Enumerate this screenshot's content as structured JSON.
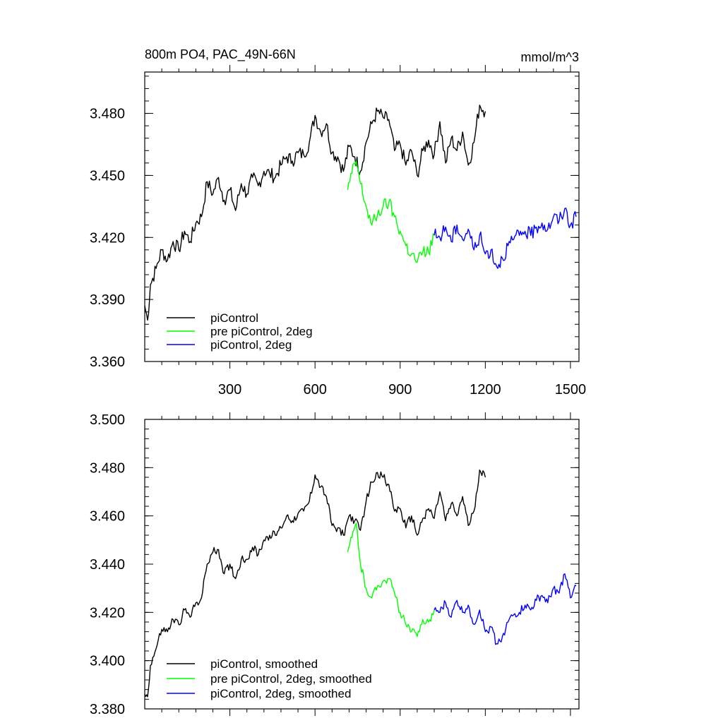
{
  "chart_data": [
    {
      "type": "line",
      "title": "800m PO4, PAC_49N-66N",
      "units": "mmol/m^3",
      "xlim": [
        0,
        1530
      ],
      "ylim": [
        3.36,
        3.5
      ],
      "xticks": [
        300,
        600,
        900,
        1200,
        1500
      ],
      "xtick_labels": [
        "300",
        "600",
        "900",
        "1200",
        "1500"
      ],
      "yticks": [
        3.36,
        3.39,
        3.42,
        3.45,
        3.48
      ],
      "ytick_labels": [
        "3.360",
        "3.390",
        "3.420",
        "3.450",
        "3.480"
      ],
      "legend": "bottom-left",
      "series": [
        {
          "name": "piControl",
          "color": "#000000",
          "x": [
            0,
            10,
            20,
            40,
            60,
            80,
            100,
            120,
            140,
            160,
            180,
            200,
            220,
            240,
            260,
            280,
            300,
            320,
            340,
            360,
            380,
            400,
            420,
            440,
            460,
            480,
            500,
            520,
            540,
            560,
            580,
            600,
            620,
            640,
            660,
            680,
            700,
            720,
            740,
            760,
            780,
            800,
            820,
            840,
            860,
            880,
            900,
            920,
            940,
            960,
            980,
            1000,
            1020,
            1040,
            1060,
            1080,
            1100,
            1120,
            1140,
            1160,
            1180,
            1200
          ],
          "y": [
            3.387,
            3.38,
            3.397,
            3.405,
            3.414,
            3.409,
            3.418,
            3.414,
            3.423,
            3.418,
            3.427,
            3.43,
            3.447,
            3.441,
            3.449,
            3.438,
            3.443,
            3.433,
            3.446,
            3.441,
            3.449,
            3.445,
            3.452,
            3.451,
            3.449,
            3.455,
            3.459,
            3.457,
            3.461,
            3.46,
            3.466,
            3.479,
            3.471,
            3.475,
            3.461,
            3.459,
            3.452,
            3.464,
            3.459,
            3.452,
            3.466,
            3.475,
            3.481,
            3.478,
            3.477,
            3.462,
            3.465,
            3.455,
            3.462,
            3.45,
            3.462,
            3.467,
            3.46,
            3.476,
            3.456,
            3.468,
            3.462,
            3.471,
            3.455,
            3.466,
            3.484,
            3.481
          ]
        },
        {
          "name": "pre piControl, 2deg",
          "color": "#00ff00",
          "x": [
            715,
            730,
            745,
            760,
            780,
            800,
            820,
            840,
            860,
            880,
            900,
            920,
            940,
            960,
            980,
            1000,
            1020
          ],
          "y": [
            3.443,
            3.451,
            3.457,
            3.446,
            3.435,
            3.426,
            3.431,
            3.435,
            3.437,
            3.43,
            3.423,
            3.416,
            3.412,
            3.408,
            3.413,
            3.413,
            3.421
          ]
        },
        {
          "name": "piControl, 2deg",
          "color": "#0000ff",
          "x": [
            1020,
            1040,
            1060,
            1080,
            1100,
            1120,
            1140,
            1160,
            1180,
            1200,
            1220,
            1240,
            1260,
            1280,
            1300,
            1320,
            1340,
            1360,
            1380,
            1400,
            1420,
            1440,
            1460,
            1480,
            1500,
            1520
          ],
          "y": [
            3.421,
            3.42,
            3.425,
            3.418,
            3.426,
            3.419,
            3.424,
            3.414,
            3.421,
            3.412,
            3.414,
            3.406,
            3.41,
            3.416,
            3.419,
            3.421,
            3.423,
            3.421,
            3.425,
            3.427,
            3.424,
            3.43,
            3.428,
            3.434,
            3.426,
            3.43
          ]
        }
      ]
    },
    {
      "type": "line",
      "xlim": [
        0,
        1530
      ],
      "ylim": [
        3.38,
        3.5
      ],
      "xticks": [
        300,
        600,
        900,
        1200,
        1500
      ],
      "yticks": [
        3.38,
        3.4,
        3.42,
        3.44,
        3.46,
        3.48,
        3.5
      ],
      "ytick_labels": [
        "3.380",
        "3.400",
        "3.420",
        "3.440",
        "3.460",
        "3.480",
        "3.500"
      ],
      "legend": "bottom-left",
      "series": [
        {
          "name": "piControl, smoothed",
          "color": "#000000",
          "x": [
            0,
            10,
            20,
            40,
            60,
            80,
            100,
            120,
            140,
            160,
            180,
            200,
            220,
            240,
            260,
            280,
            300,
            320,
            340,
            360,
            380,
            400,
            420,
            440,
            460,
            480,
            500,
            520,
            540,
            560,
            580,
            600,
            620,
            640,
            660,
            680,
            700,
            720,
            740,
            760,
            780,
            800,
            820,
            840,
            860,
            880,
            900,
            920,
            940,
            960,
            980,
            1000,
            1020,
            1040,
            1060,
            1080,
            1100,
            1120,
            1140,
            1160,
            1180,
            1200
          ],
          "y": [
            3.386,
            3.385,
            3.398,
            3.405,
            3.413,
            3.412,
            3.417,
            3.415,
            3.421,
            3.418,
            3.424,
            3.426,
            3.44,
            3.445,
            3.446,
            3.436,
            3.44,
            3.434,
            3.442,
            3.442,
            3.447,
            3.444,
            3.45,
            3.452,
            3.452,
            3.455,
            3.46,
            3.458,
            3.461,
            3.462,
            3.466,
            3.477,
            3.472,
            3.468,
            3.456,
            3.455,
            3.452,
            3.46,
            3.458,
            3.454,
            3.466,
            3.474,
            3.478,
            3.476,
            3.473,
            3.462,
            3.463,
            3.455,
            3.46,
            3.452,
            3.459,
            3.463,
            3.459,
            3.47,
            3.458,
            3.465,
            3.46,
            3.468,
            3.456,
            3.462,
            3.479,
            3.476
          ]
        },
        {
          "name": "pre piControl, 2deg, smoothed",
          "color": "#00ff00",
          "x": [
            715,
            730,
            745,
            760,
            780,
            800,
            820,
            840,
            860,
            880,
            900,
            920,
            940,
            960,
            980,
            1000,
            1020
          ],
          "y": [
            3.445,
            3.451,
            3.457,
            3.44,
            3.43,
            3.426,
            3.431,
            3.433,
            3.434,
            3.428,
            3.42,
            3.415,
            3.412,
            3.41,
            3.417,
            3.416,
            3.421
          ]
        },
        {
          "name": "piControl, 2deg, smoothed",
          "color": "#0000ff",
          "x": [
            1020,
            1040,
            1060,
            1080,
            1100,
            1120,
            1140,
            1160,
            1180,
            1200,
            1220,
            1240,
            1260,
            1280,
            1300,
            1320,
            1340,
            1360,
            1380,
            1400,
            1420,
            1440,
            1460,
            1480,
            1500,
            1520
          ],
          "y": [
            3.421,
            3.42,
            3.424,
            3.418,
            3.425,
            3.42,
            3.423,
            3.415,
            3.421,
            3.412,
            3.414,
            3.407,
            3.41,
            3.416,
            3.419,
            3.42,
            3.423,
            3.421,
            3.425,
            3.427,
            3.424,
            3.43,
            3.428,
            3.436,
            3.426,
            3.431
          ]
        }
      ]
    }
  ]
}
